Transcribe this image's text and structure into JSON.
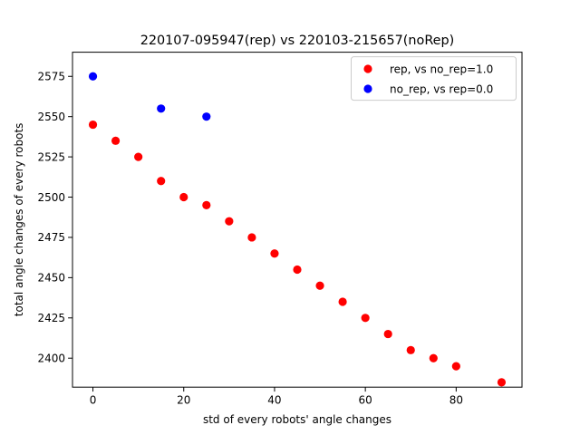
{
  "chart_data": {
    "type": "scatter",
    "title": "220107-095947(rep) vs 220103-215657(noRep)",
    "xlabel": "std of every robots' angle changes",
    "ylabel": "total angle changes of every robots",
    "xlim": [
      -4.5,
      94.5
    ],
    "ylim": [
      2382,
      2590
    ],
    "xticks": [
      0,
      20,
      40,
      60,
      80
    ],
    "yticks": [
      2400,
      2425,
      2450,
      2475,
      2500,
      2525,
      2550,
      2575
    ],
    "grid": false,
    "legend_position": "top-right",
    "series": [
      {
        "name": "rep, vs no_rep=1.0",
        "color": "#ff0000",
        "x": [
          0,
          5,
          10,
          15,
          20,
          25,
          30,
          35,
          40,
          45,
          50,
          55,
          60,
          65,
          70,
          75,
          80,
          90
        ],
        "y": [
          2545,
          2535,
          2525,
          2510,
          2500,
          2495,
          2485,
          2475,
          2465,
          2455,
          2445,
          2435,
          2425,
          2415,
          2405,
          2400,
          2395,
          2385
        ]
      },
      {
        "name": "no_rep, vs rep=0.0",
        "color": "#0000ff",
        "x": [
          0,
          15,
          25
        ],
        "y": [
          2575,
          2555,
          2550
        ]
      }
    ]
  }
}
